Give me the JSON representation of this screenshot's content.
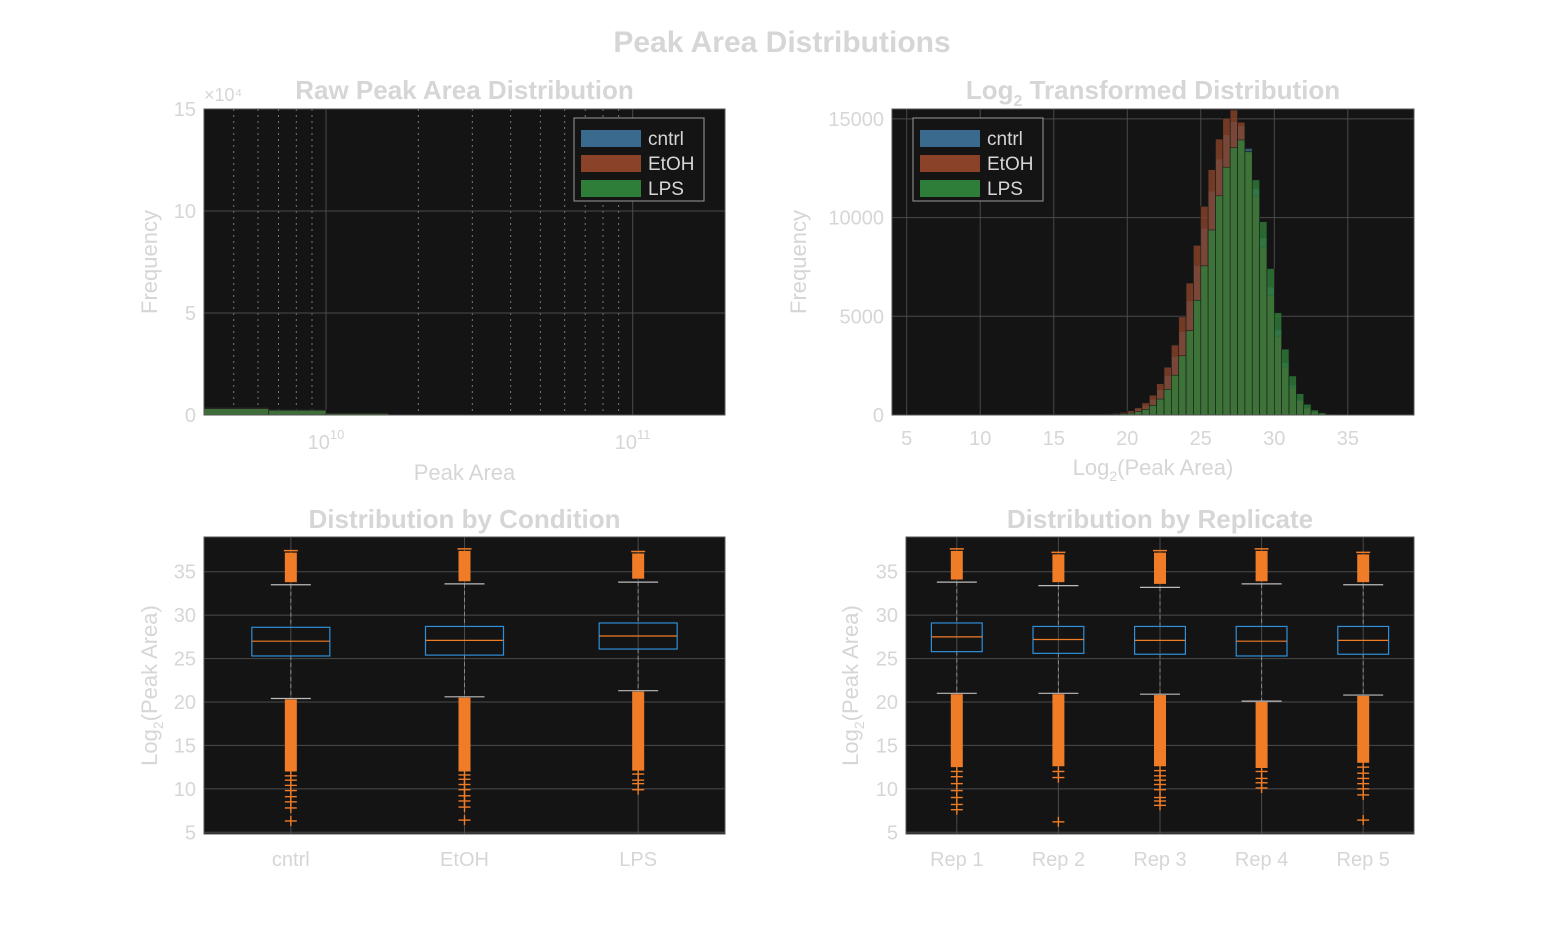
{
  "figure": {
    "title": "Peak Area Distributions"
  },
  "colors": {
    "background": "#ffffff",
    "axes_bg": "#141414",
    "text": "#d6d6d6",
    "grid": "#4a4a4a",
    "cntrl": "#3a6a8e",
    "EtOH": "#8a4228",
    "LPS": "#2e7d38",
    "box": "#2f8fd8",
    "outlier": "#f07c28"
  },
  "chart_data": [
    {
      "id": "raw",
      "type": "histogram",
      "title": "Raw Peak Area Distribution",
      "xlabel": "Peak Area",
      "ylabel": "Frequency",
      "xscale": "log",
      "xlim": [
        4000000000,
        200000000000
      ],
      "ylim": [
        0,
        150000
      ],
      "exponent_label": "×10⁴",
      "yticks": [
        0,
        50000,
        100000,
        150000
      ],
      "ytick_labels": [
        "0",
        "5",
        "10",
        "15"
      ],
      "xtick_values": [
        10000000000,
        100000000000
      ],
      "xtick_bases": [
        "10",
        "10"
      ],
      "xtick_exponents": [
        "10",
        "11"
      ],
      "legend": {
        "position": "top-right",
        "entries": [
          "cntrl",
          "EtOH",
          "LPS"
        ]
      },
      "bin_edges": [
        4000000000,
        6500000000,
        10000000000,
        16000000000
      ],
      "series": [
        {
          "name": "cntrl",
          "counts": [
            3600,
            2600,
            900
          ]
        },
        {
          "name": "EtOH",
          "counts": [
            3400,
            2500,
            800
          ]
        },
        {
          "name": "LPS",
          "counts": [
            3100,
            2300,
            700
          ]
        }
      ]
    },
    {
      "id": "log",
      "type": "histogram",
      "title_prefix": "Log",
      "title_sub": "2",
      "title_suffix": " Transformed Distribution",
      "xlabel_prefix": "Log",
      "xlabel_sub": "2",
      "xlabel_suffix": "(Peak Area)",
      "ylabel": "Frequency",
      "xlim": [
        4,
        39.5
      ],
      "ylim": [
        0,
        15500
      ],
      "xticks": [
        5,
        10,
        15,
        20,
        25,
        30,
        35
      ],
      "yticks": [
        0,
        5000,
        10000,
        15000
      ],
      "legend": {
        "position": "top-left",
        "entries": [
          "cntrl",
          "EtOH",
          "LPS"
        ]
      },
      "bin_start": 5.5,
      "bin_width": 0.5,
      "series": [
        {
          "name": "cntrl",
          "mu": 27.5,
          "sigma_left": 2.35,
          "sigma_right": 1.75,
          "peak": 14800
        },
        {
          "name": "EtOH",
          "mu": 27.3,
          "sigma_left": 2.35,
          "sigma_right": 1.8,
          "peak": 15300
        },
        {
          "name": "LPS",
          "mu": 27.8,
          "sigma_left": 2.3,
          "sigma_right": 1.75,
          "peak": 13800
        }
      ]
    },
    {
      "id": "cond",
      "type": "box",
      "title": "Distribution by Condition",
      "ylabel_prefix": "Log",
      "ylabel_sub": "2",
      "ylabel_suffix": "(Peak Area)",
      "ylim": [
        4.8,
        39
      ],
      "yticks": [
        5,
        10,
        15,
        20,
        25,
        30,
        35
      ],
      "categories": [
        "cntrl",
        "EtOH",
        "LPS"
      ],
      "boxes": [
        {
          "q1": 25.3,
          "median": 27.0,
          "q3": 28.6,
          "whisker_low": 20.4,
          "whisker_high": 33.5,
          "upper_outliers": [
            33.8,
            37.2
          ],
          "lower_dense": [
            12.0,
            20.3
          ],
          "lower_sparse": [
            11.5,
            11.0,
            10.4,
            9.8,
            9.1,
            8.5,
            7.8,
            6.3
          ]
        },
        {
          "q1": 25.4,
          "median": 27.1,
          "q3": 28.7,
          "whisker_low": 20.6,
          "whisker_high": 33.6,
          "upper_outliers": [
            33.9,
            37.4
          ],
          "lower_dense": [
            12.0,
            20.5
          ],
          "lower_sparse": [
            11.6,
            11.1,
            10.5,
            9.9,
            9.2,
            8.6,
            7.9,
            6.4
          ]
        },
        {
          "q1": 26.1,
          "median": 27.6,
          "q3": 29.1,
          "whisker_low": 21.3,
          "whisker_high": 33.8,
          "upper_outliers": [
            34.2,
            37.1
          ],
          "lower_dense": [
            12.1,
            21.2
          ],
          "lower_sparse": [
            11.7,
            11.0,
            10.6,
            9.9
          ]
        }
      ]
    },
    {
      "id": "rep",
      "type": "box",
      "title": "Distribution by Replicate",
      "ylabel_prefix": "Log",
      "ylabel_sub": "2",
      "ylabel_suffix": "(Peak Area)",
      "ylim": [
        4.8,
        39
      ],
      "yticks": [
        5,
        10,
        15,
        20,
        25,
        30,
        35
      ],
      "categories": [
        "Rep 1",
        "Rep 2",
        "Rep 3",
        "Rep 4",
        "Rep 5"
      ],
      "boxes": [
        {
          "q1": 25.8,
          "median": 27.5,
          "q3": 29.1,
          "whisker_low": 21.0,
          "whisker_high": 33.8,
          "upper_outliers": [
            34.1,
            37.4
          ],
          "lower_dense": [
            12.5,
            20.9
          ],
          "lower_sparse": [
            12.0,
            11.4,
            10.6,
            9.8,
            9.0,
            8.2,
            7.6
          ]
        },
        {
          "q1": 25.6,
          "median": 27.2,
          "q3": 28.7,
          "whisker_low": 21.0,
          "whisker_high": 33.4,
          "upper_outliers": [
            33.8,
            37.0
          ],
          "lower_dense": [
            12.6,
            20.9
          ],
          "lower_sparse": [
            12.0,
            11.3,
            6.2
          ]
        },
        {
          "q1": 25.5,
          "median": 27.1,
          "q3": 28.7,
          "whisker_low": 20.9,
          "whisker_high": 33.2,
          "upper_outliers": [
            33.6,
            37.2
          ],
          "lower_dense": [
            12.6,
            20.8
          ],
          "lower_sparse": [
            12.1,
            11.5,
            11.0,
            10.5,
            9.9,
            9.0,
            8.6,
            8.1
          ]
        },
        {
          "q1": 25.3,
          "median": 27.0,
          "q3": 28.7,
          "whisker_low": 20.1,
          "whisker_high": 33.6,
          "upper_outliers": [
            33.9,
            37.4
          ],
          "lower_dense": [
            12.4,
            20.0
          ],
          "lower_sparse": [
            12.0,
            11.2,
            10.7,
            10.1
          ]
        },
        {
          "q1": 25.5,
          "median": 27.1,
          "q3": 28.7,
          "whisker_low": 20.8,
          "whisker_high": 33.5,
          "upper_outliers": [
            33.8,
            37.0
          ],
          "lower_dense": [
            13.0,
            20.7
          ],
          "lower_sparse": [
            12.5,
            11.8,
            11.2,
            10.6,
            10.0,
            9.3,
            6.4
          ]
        }
      ]
    }
  ]
}
